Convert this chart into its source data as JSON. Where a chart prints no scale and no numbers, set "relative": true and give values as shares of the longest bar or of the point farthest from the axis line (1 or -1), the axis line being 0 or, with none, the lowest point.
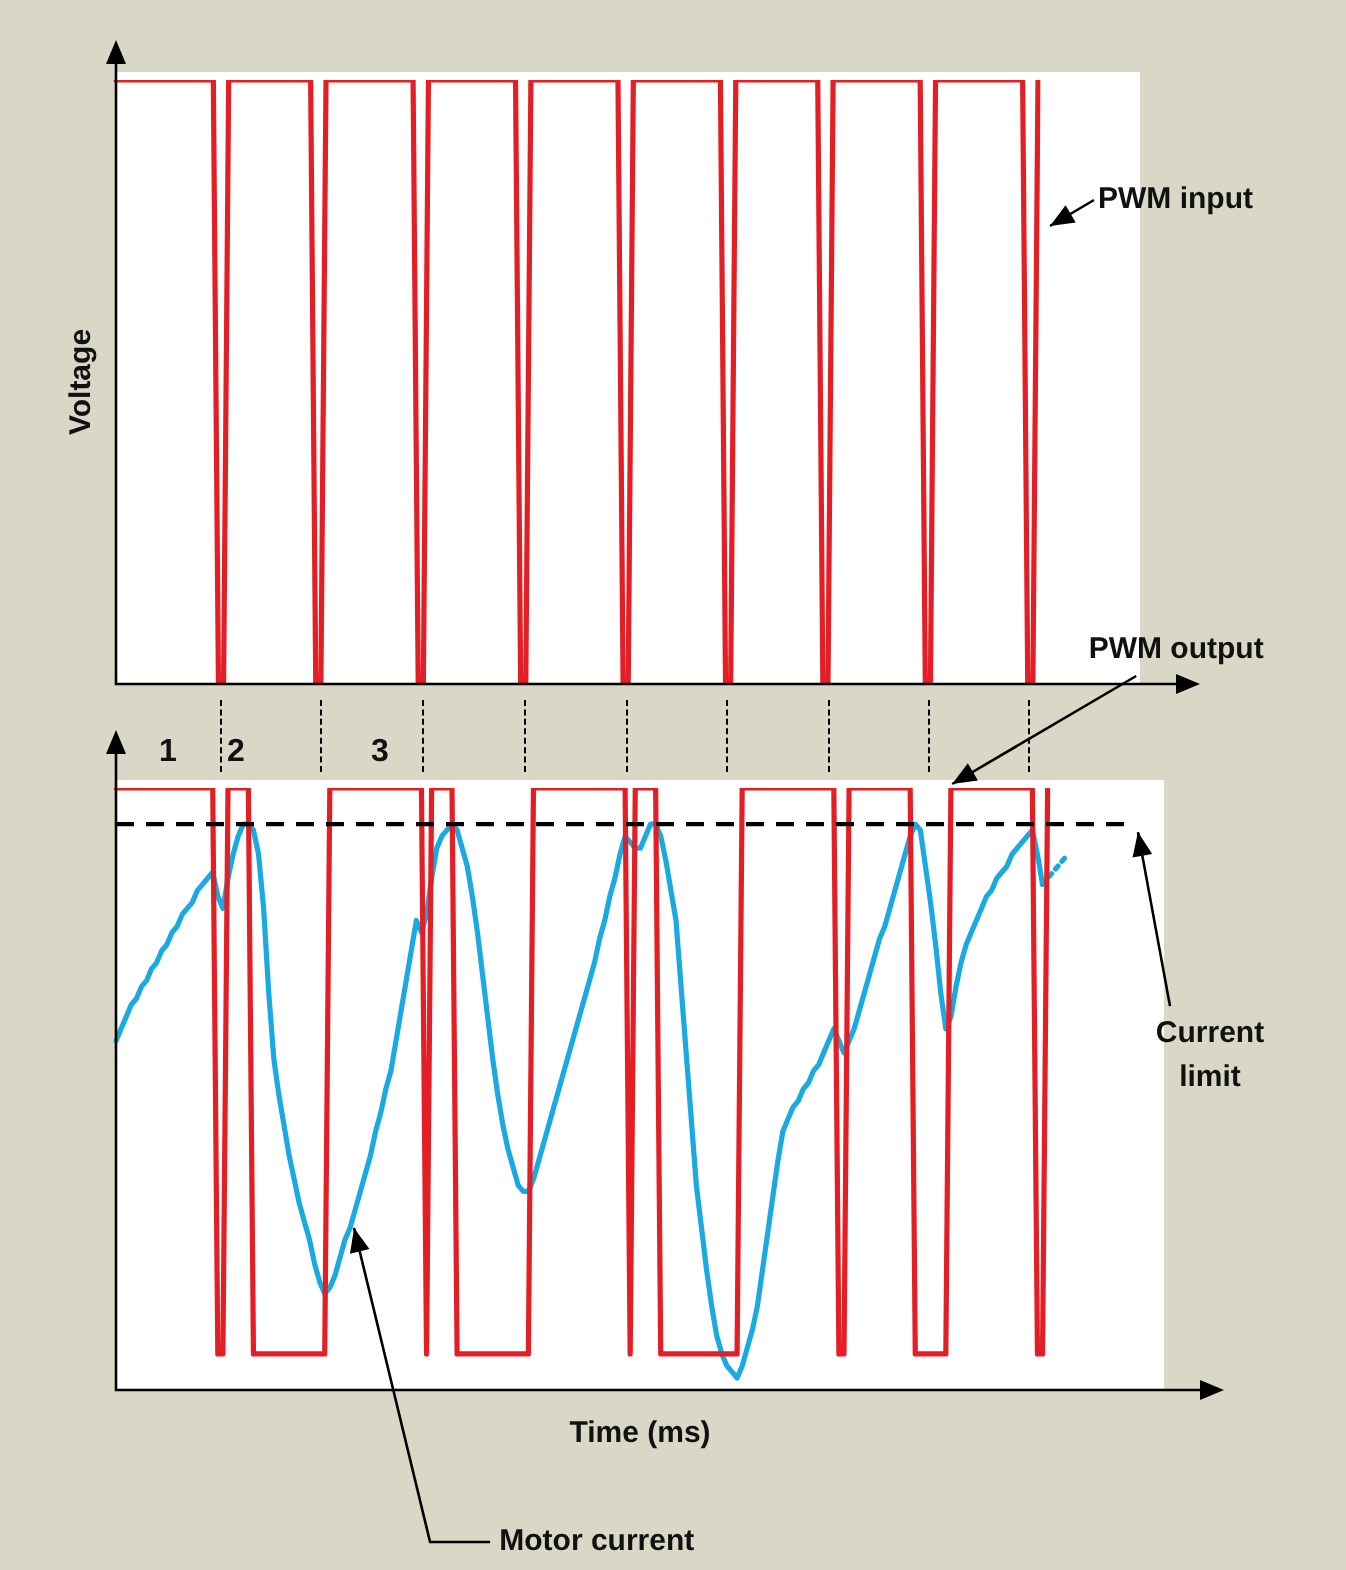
{
  "chart_data": [
    {
      "type": "line",
      "relative": true,
      "ylabel": "Voltage",
      "legend": false,
      "categories": [
        null,
        null,
        null,
        null,
        null,
        null,
        null,
        null,
        null,
        null,
        null,
        null,
        null,
        null,
        null,
        null,
        null,
        null,
        null,
        null,
        null,
        null,
        null,
        null,
        null,
        null,
        null,
        null,
        null,
        null,
        null,
        null,
        null,
        null,
        null,
        null,
        null,
        null,
        null,
        null,
        null,
        null,
        null,
        null,
        null,
        null,
        null,
        null,
        null,
        null,
        null,
        null,
        null,
        null,
        null,
        null,
        null,
        null,
        null,
        null,
        null,
        null,
        null,
        null,
        null,
        null,
        null,
        null,
        null,
        null,
        null,
        null,
        null,
        null,
        null,
        null,
        null,
        null,
        null,
        null,
        null,
        null,
        null,
        null,
        null,
        null,
        null,
        null,
        null,
        null,
        null,
        null,
        null,
        null,
        null,
        null,
        null,
        null,
        null,
        null,
        null,
        null,
        null,
        null,
        null,
        null,
        null,
        null,
        null,
        null,
        null,
        null,
        null,
        null,
        null,
        null,
        null,
        null,
        null,
        null,
        null,
        null,
        null,
        null,
        null,
        null,
        null,
        null,
        null,
        null,
        null,
        null,
        null,
        null,
        null,
        null,
        null,
        null,
        null,
        null,
        null,
        null,
        null,
        null,
        null,
        null,
        null,
        null,
        null,
        null,
        null,
        null,
        null,
        null,
        null,
        null,
        null,
        null,
        null,
        null,
        null,
        null,
        null,
        null,
        null,
        null,
        null,
        null,
        null,
        null,
        null,
        null,
        null,
        null,
        null,
        null,
        null,
        null,
        null,
        null,
        null
      ],
      "series": [
        {
          "name": "PWM input",
          "color": "#e31e24",
          "values": [
            1,
            1,
            1,
            1,
            1,
            1,
            1,
            1,
            1,
            1,
            1,
            1,
            1,
            1,
            1,
            1,
            1,
            1,
            1,
            1,
            0,
            0,
            1,
            1,
            1,
            1,
            1,
            1,
            1,
            1,
            1,
            1,
            1,
            1,
            1,
            1,
            1,
            1,
            1,
            0,
            0,
            1,
            1,
            1,
            1,
            1,
            1,
            1,
            1,
            1,
            1,
            1,
            1,
            1,
            1,
            1,
            1,
            1,
            1,
            0,
            0,
            1,
            1,
            1,
            1,
            1,
            1,
            1,
            1,
            1,
            1,
            1,
            1,
            1,
            1,
            1,
            1,
            1,
            1,
            0,
            0,
            1,
            1,
            1,
            1,
            1,
            1,
            1,
            1,
            1,
            1,
            1,
            1,
            1,
            1,
            1,
            1,
            1,
            1,
            0,
            0,
            1,
            1,
            1,
            1,
            1,
            1,
            1,
            1,
            1,
            1,
            1,
            1,
            1,
            1,
            1,
            1,
            1,
            1,
            0,
            0,
            1,
            1,
            1,
            1,
            1,
            1,
            1,
            1,
            1,
            1,
            1,
            1,
            1,
            1,
            1,
            1,
            1,
            0,
            0,
            1,
            1,
            1,
            1,
            1,
            1,
            1,
            1,
            1,
            1,
            1,
            1,
            1,
            1,
            1,
            1,
            1,
            1,
            0,
            0,
            1,
            1,
            1,
            1,
            1,
            1,
            1,
            1,
            1,
            1,
            1,
            1,
            1,
            1,
            1,
            1,
            1,
            1,
            0,
            0,
            1
          ]
        }
      ]
    },
    {
      "type": "line",
      "relative": true,
      "xlabel": "Time (ms)",
      "legend": false,
      "categories": [
        null,
        null,
        null,
        null,
        null,
        null,
        null,
        null,
        null,
        null,
        null,
        null,
        null,
        null,
        null,
        null,
        null,
        null,
        null,
        null,
        null,
        null,
        null,
        null,
        null,
        null,
        null,
        null,
        null,
        null,
        null,
        null,
        null,
        null,
        null,
        null,
        null,
        null,
        null,
        null,
        null,
        null,
        null,
        null,
        null,
        null,
        null,
        null,
        null,
        null,
        null,
        null,
        null,
        null,
        null,
        null,
        null,
        null,
        null,
        null,
        null,
        null,
        null,
        null,
        null,
        null,
        null,
        null,
        null,
        null,
        null,
        null,
        null,
        null,
        null,
        null,
        null,
        null,
        null,
        null,
        null,
        null,
        null,
        null,
        null,
        null,
        null,
        null,
        null,
        null,
        null,
        null,
        null,
        null,
        null,
        null,
        null,
        null,
        null,
        null,
        null,
        null,
        null,
        null,
        null,
        null,
        null,
        null,
        null,
        null,
        null,
        null,
        null,
        null,
        null,
        null,
        null,
        null,
        null,
        null,
        null,
        null,
        null,
        null,
        null,
        null,
        null,
        null,
        null,
        null,
        null,
        null,
        null,
        null,
        null,
        null,
        null,
        null,
        null,
        null,
        null,
        null,
        null,
        null,
        null,
        null,
        null,
        null,
        null,
        null,
        null,
        null,
        null,
        null,
        null,
        null,
        null,
        null,
        null,
        null,
        null,
        null,
        null,
        null,
        null,
        null,
        null,
        null,
        null,
        null,
        null,
        null,
        null,
        null,
        null,
        null,
        null,
        null,
        null,
        null,
        null,
        null,
        null,
        null,
        null,
        null,
        null,
        null
      ],
      "series": [
        {
          "name": "PWM output",
          "color": "#e31e24",
          "values": [
            1,
            1,
            1,
            1,
            1,
            1,
            1,
            1,
            1,
            1,
            1,
            1,
            1,
            1,
            1,
            1,
            1,
            1,
            1,
            1,
            0.06,
            0.06,
            1,
            1,
            1,
            1,
            1,
            0.06,
            0.06,
            0.06,
            0.06,
            0.06,
            0.06,
            0.06,
            0.06,
            0.06,
            0.06,
            0.06,
            0.06,
            0.06,
            0.06,
            0.06,
            1,
            1,
            1,
            1,
            1,
            1,
            1,
            1,
            1,
            1,
            1,
            1,
            1,
            1,
            1,
            1,
            1,
            1,
            1,
            0.06,
            1,
            1,
            1,
            1,
            1,
            0.06,
            0.06,
            0.06,
            0.06,
            0.06,
            0.06,
            0.06,
            0.06,
            0.06,
            0.06,
            0.06,
            0.06,
            0.06,
            0.06,
            0.06,
            1,
            1,
            1,
            1,
            1,
            1,
            1,
            1,
            1,
            1,
            1,
            1,
            1,
            1,
            1,
            1,
            1,
            1,
            1,
            0.06,
            1,
            1,
            1,
            1,
            1,
            0.06,
            0.06,
            0.06,
            0.06,
            0.06,
            0.06,
            0.06,
            0.06,
            0.06,
            0.06,
            0.06,
            0.06,
            0.06,
            0.06,
            0.06,
            0.06,
            1,
            1,
            1,
            1,
            1,
            1,
            1,
            1,
            1,
            1,
            1,
            1,
            1,
            1,
            1,
            1,
            1,
            1,
            1,
            0.06,
            0.06,
            1,
            1,
            1,
            1,
            1,
            1,
            1,
            1,
            1,
            1,
            1,
            1,
            1,
            0.06,
            0.06,
            0.06,
            0.06,
            0.06,
            0.06,
            0.06,
            1,
            1,
            1,
            1,
            1,
            1,
            1,
            1,
            1,
            1,
            1,
            1,
            1,
            1,
            1,
            1,
            1,
            0.06,
            0.06,
            1,
            null,
            null,
            null,
            null
          ]
        },
        {
          "name": "Motor current",
          "color": "#1ba9e1",
          "values": [
            0.58,
            0.6,
            0.62,
            0.64,
            0.65,
            0.67,
            0.68,
            0.7,
            0.71,
            0.73,
            0.74,
            0.76,
            0.77,
            0.79,
            0.8,
            0.81,
            0.83,
            0.84,
            0.85,
            0.86,
            0.82,
            0.8,
            0.85,
            0.89,
            0.92,
            0.94,
            0.94,
            0.93,
            0.89,
            0.8,
            0.66,
            0.55,
            0.49,
            0.44,
            0.39,
            0.35,
            0.31,
            0.28,
            0.25,
            0.21,
            0.18,
            0.16,
            0.17,
            0.19,
            0.22,
            0.25,
            0.27,
            0.3,
            0.33,
            0.36,
            0.39,
            0.43,
            0.46,
            0.5,
            0.53,
            0.58,
            0.63,
            0.68,
            0.73,
            0.78,
            0.76,
            0.79,
            0.85,
            0.9,
            0.92,
            0.93,
            0.94,
            0.93,
            0.9,
            0.87,
            0.82,
            0.76,
            0.69,
            0.62,
            0.55,
            0.49,
            0.44,
            0.4,
            0.37,
            0.34,
            0.33,
            0.33,
            0.35,
            0.38,
            0.41,
            0.44,
            0.47,
            0.5,
            0.53,
            0.56,
            0.59,
            0.62,
            0.65,
            0.68,
            0.71,
            0.75,
            0.78,
            0.82,
            0.85,
            0.89,
            0.92,
            0.91,
            0.9,
            0.9,
            0.92,
            0.94,
            0.94,
            0.92,
            0.88,
            0.83,
            0.78,
            0.67,
            0.56,
            0.45,
            0.34,
            0.27,
            0.2,
            0.14,
            0.09,
            0.06,
            0.04,
            0.03,
            0.02,
            0.04,
            0.07,
            0.1,
            0.14,
            0.2,
            0.26,
            0.32,
            0.38,
            0.43,
            0.45,
            0.47,
            0.48,
            0.5,
            0.51,
            0.53,
            0.54,
            0.56,
            0.58,
            0.6,
            0.58,
            0.56,
            0.58,
            0.6,
            0.63,
            0.66,
            0.69,
            0.72,
            0.75,
            0.77,
            0.8,
            0.83,
            0.86,
            0.89,
            0.92,
            0.94,
            0.93,
            0.87,
            0.81,
            0.74,
            0.66,
            0.6,
            0.62,
            0.67,
            0.71,
            0.74,
            0.76,
            0.78,
            0.8,
            0.82,
            0.83,
            0.85,
            0.86,
            0.87,
            0.89,
            0.9,
            0.91,
            0.92,
            0.93,
            0.89,
            0.84,
            null,
            null,
            null,
            null,
            null
          ]
        },
        {
          "color": "#1ba9e1",
          "line_style": "dotted",
          "values": [
            null,
            null,
            null,
            null,
            null,
            null,
            null,
            null,
            null,
            null,
            null,
            null,
            null,
            null,
            null,
            null,
            null,
            null,
            null,
            null,
            null,
            null,
            null,
            null,
            null,
            null,
            null,
            null,
            null,
            null,
            null,
            null,
            null,
            null,
            null,
            null,
            null,
            null,
            null,
            null,
            null,
            null,
            null,
            null,
            null,
            null,
            null,
            null,
            null,
            null,
            null,
            null,
            null,
            null,
            null,
            null,
            null,
            null,
            null,
            null,
            null,
            null,
            null,
            null,
            null,
            null,
            null,
            null,
            null,
            null,
            null,
            null,
            null,
            null,
            null,
            null,
            null,
            null,
            null,
            null,
            null,
            null,
            null,
            null,
            null,
            null,
            null,
            null,
            null,
            null,
            null,
            null,
            null,
            null,
            null,
            null,
            null,
            null,
            null,
            null,
            null,
            null,
            null,
            null,
            null,
            null,
            null,
            null,
            null,
            null,
            null,
            null,
            null,
            null,
            null,
            null,
            null,
            null,
            null,
            null,
            null,
            null,
            null,
            null,
            null,
            null,
            null,
            null,
            null,
            null,
            null,
            null,
            null,
            null,
            null,
            null,
            null,
            null,
            null,
            null,
            null,
            null,
            null,
            null,
            null,
            null,
            null,
            null,
            null,
            null,
            null,
            null,
            null,
            null,
            null,
            null,
            null,
            null,
            null,
            null,
            null,
            null,
            null,
            null,
            null,
            null,
            null,
            null,
            null,
            null,
            null,
            null,
            null,
            null,
            null,
            null,
            null,
            null,
            null,
            null,
            null,
            null,
            0.84,
            0.85,
            0.86,
            0.87,
            0.88,
            0.89
          ]
        }
      ],
      "ref_lines": [
        {
          "axis": "y",
          "value": 0.94,
          "label": "Current limit",
          "line_style": "dashed",
          "color": "#000000"
        }
      ],
      "annotations": [
        "1",
        "2",
        "3"
      ]
    }
  ]
}
